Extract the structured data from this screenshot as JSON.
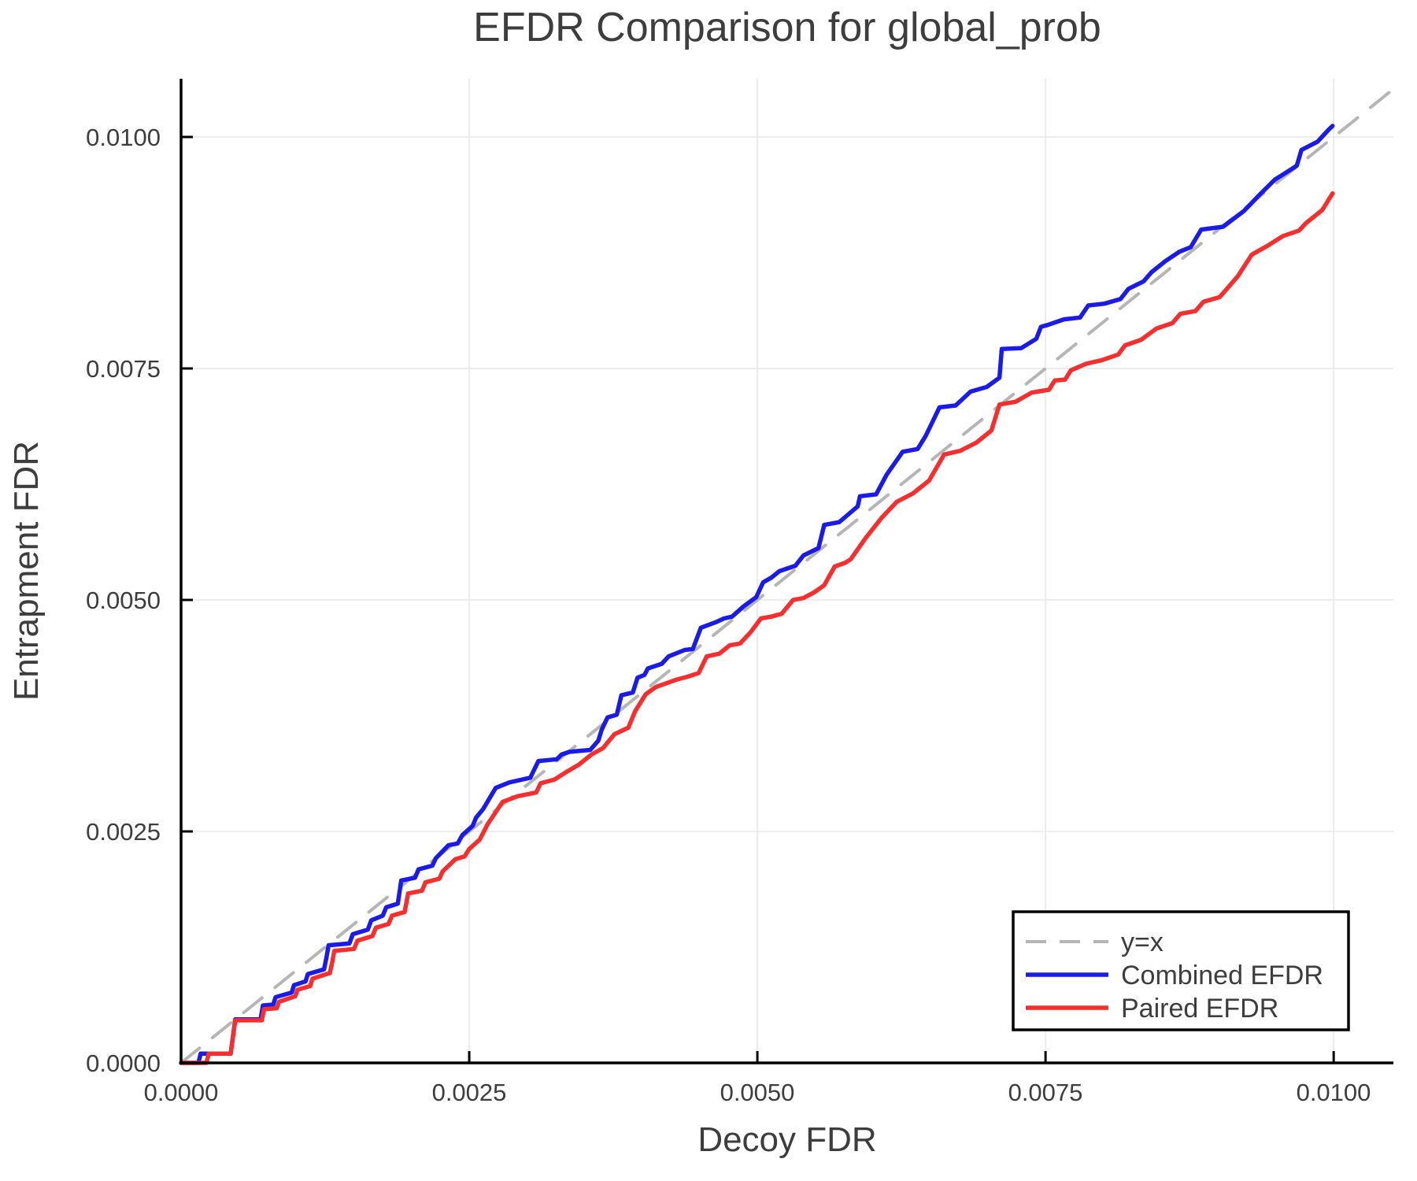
{
  "chart_data": {
    "type": "line",
    "title": "EFDR Comparison for global_prob",
    "xlabel": "Decoy FDR",
    "ylabel": "Entrapment FDR",
    "xlim": [
      0,
      0.010518
    ],
    "ylim": [
      0,
      0.010629
    ],
    "grid": true,
    "legend_position": "lower right",
    "x_ticks": [
      0,
      0.0025,
      0.005,
      0.0075,
      0.01
    ],
    "x_tick_labels": [
      "0.0000",
      "0.0025",
      "0.0050",
      "0.0075",
      "0.0100"
    ],
    "y_ticks": [
      0,
      0.0025,
      0.005,
      0.0075,
      0.01
    ],
    "y_tick_labels": [
      "0.0000",
      "0.0025",
      "0.0050",
      "0.0075",
      "0.0100"
    ],
    "colors": {
      "identity": "#b5b5b5",
      "combined": "#1b1be8",
      "paired": "#f72e2e",
      "grid": "#e8e8e8",
      "spine": "#000000",
      "text": "#3d3d3d"
    },
    "series": [
      {
        "name": "y=x",
        "color": "#b5b5b5",
        "dashed": true,
        "width": 4,
        "points": [
          [
            0,
            0
          ],
          [
            0.010518,
            0.010518
          ]
        ]
      },
      {
        "name": "Combined EFDR",
        "color": "#1b1be8",
        "dashed": false,
        "width": 5.5,
        "points": [
          [
            0,
            0
          ],
          [
            0.00015,
            0
          ],
          [
            0.00017,
            0.0001
          ],
          [
            0.00043,
            0.0001
          ],
          [
            0.00047,
            0.00047
          ],
          [
            0.00069,
            0.00047
          ],
          [
            0.00071,
            0.00062
          ],
          [
            0.0008,
            0.00063
          ],
          [
            0.00082,
            0.00071
          ],
          [
            0.00096,
            0.00076
          ],
          [
            0.00098,
            0.00084
          ],
          [
            0.00108,
            0.00088
          ],
          [
            0.0011,
            0.00096
          ],
          [
            0.00124,
            0.00101
          ],
          [
            0.00126,
            0.00113
          ],
          [
            0.00128,
            0.00127
          ],
          [
            0.00146,
            0.00129
          ],
          [
            0.00149,
            0.00139
          ],
          [
            0.00162,
            0.00144
          ],
          [
            0.00165,
            0.00154
          ],
          [
            0.00175,
            0.00159
          ],
          [
            0.00178,
            0.00168
          ],
          [
            0.00188,
            0.00172
          ],
          [
            0.00191,
            0.00197
          ],
          [
            0.00203,
            0.002
          ],
          [
            0.00206,
            0.00209
          ],
          [
            0.00218,
            0.00213
          ],
          [
            0.00221,
            0.00221
          ],
          [
            0.00232,
            0.00235
          ],
          [
            0.0024,
            0.00237
          ],
          [
            0.00244,
            0.00246
          ],
          [
            0.00253,
            0.00256
          ],
          [
            0.00256,
            0.00265
          ],
          [
            0.00262,
            0.00274
          ],
          [
            0.00273,
            0.00297
          ],
          [
            0.00285,
            0.00303
          ],
          [
            0.00303,
            0.00308
          ],
          [
            0.0031,
            0.00326
          ],
          [
            0.00326,
            0.00328
          ],
          [
            0.0033,
            0.00333
          ],
          [
            0.00337,
            0.00336
          ],
          [
            0.00355,
            0.00338
          ],
          [
            0.00362,
            0.00348
          ],
          [
            0.00365,
            0.0036
          ],
          [
            0.0037,
            0.00373
          ],
          [
            0.00378,
            0.00376
          ],
          [
            0.00382,
            0.00397
          ],
          [
            0.00392,
            0.004
          ],
          [
            0.00396,
            0.00416
          ],
          [
            0.00402,
            0.00419
          ],
          [
            0.00405,
            0.00426
          ],
          [
            0.00417,
            0.00431
          ],
          [
            0.00423,
            0.00439
          ],
          [
            0.00437,
            0.00446
          ],
          [
            0.00444,
            0.00447
          ],
          [
            0.00451,
            0.0047
          ],
          [
            0.00464,
            0.00476
          ],
          [
            0.00471,
            0.0048
          ],
          [
            0.00478,
            0.00482
          ],
          [
            0.00488,
            0.00493
          ],
          [
            0.00499,
            0.00503
          ],
          [
            0.00505,
            0.00519
          ],
          [
            0.00512,
            0.00524
          ],
          [
            0.00519,
            0.00531
          ],
          [
            0.00533,
            0.00537
          ],
          [
            0.0054,
            0.00548
          ],
          [
            0.00553,
            0.00556
          ],
          [
            0.00558,
            0.00581
          ],
          [
            0.00571,
            0.00584
          ],
          [
            0.00587,
            0.00601
          ],
          [
            0.00589,
            0.00612
          ],
          [
            0.00603,
            0.00614
          ],
          [
            0.00612,
            0.00635
          ],
          [
            0.00626,
            0.0066
          ],
          [
            0.00639,
            0.00663
          ],
          [
            0.00646,
            0.00677
          ],
          [
            0.00658,
            0.00708
          ],
          [
            0.00672,
            0.0071
          ],
          [
            0.00685,
            0.00725
          ],
          [
            0.00699,
            0.0073
          ],
          [
            0.0071,
            0.0074
          ],
          [
            0.00712,
            0.00771
          ],
          [
            0.00729,
            0.00772
          ],
          [
            0.00742,
            0.00782
          ],
          [
            0.00746,
            0.00795
          ],
          [
            0.00752,
            0.00797
          ],
          [
            0.00766,
            0.00803
          ],
          [
            0.0078,
            0.00805
          ],
          [
            0.00787,
            0.00818
          ],
          [
            0.00801,
            0.0082
          ],
          [
            0.00815,
            0.00825
          ],
          [
            0.00822,
            0.00836
          ],
          [
            0.00835,
            0.00844
          ],
          [
            0.00842,
            0.00854
          ],
          [
            0.00854,
            0.00866
          ],
          [
            0.00866,
            0.00876
          ],
          [
            0.00876,
            0.00881
          ],
          [
            0.00885,
            0.009
          ],
          [
            0.00904,
            0.00903
          ],
          [
            0.00922,
            0.0092
          ],
          [
            0.00936,
            0.00938
          ],
          [
            0.00949,
            0.00954
          ],
          [
            0.00958,
            0.00961
          ],
          [
            0.00968,
            0.00969
          ],
          [
            0.00972,
            0.00986
          ],
          [
            0.00986,
            0.00995
          ],
          [
            0.00995,
            0.01007
          ],
          [
            0.00999,
            0.01012
          ]
        ]
      },
      {
        "name": "Paired EFDR",
        "color": "#f72e2e",
        "dashed": false,
        "width": 5.5,
        "points": [
          [
            0,
            0
          ],
          [
            0.00022,
            0
          ],
          [
            0.00024,
            0.0001
          ],
          [
            0.00043,
            0.0001
          ],
          [
            0.00047,
            0.00046
          ],
          [
            0.0007,
            0.00046
          ],
          [
            0.00072,
            0.00058
          ],
          [
            0.00083,
            0.00059
          ],
          [
            0.00085,
            0.00066
          ],
          [
            0.00099,
            0.00072
          ],
          [
            0.00101,
            0.00079
          ],
          [
            0.00112,
            0.00083
          ],
          [
            0.00114,
            0.00091
          ],
          [
            0.00129,
            0.00097
          ],
          [
            0.00131,
            0.00108
          ],
          [
            0.00133,
            0.00121
          ],
          [
            0.0015,
            0.00123
          ],
          [
            0.00153,
            0.00132
          ],
          [
            0.00166,
            0.00137
          ],
          [
            0.00169,
            0.00146
          ],
          [
            0.0018,
            0.0015
          ],
          [
            0.00183,
            0.00159
          ],
          [
            0.00194,
            0.00163
          ],
          [
            0.00197,
            0.00183
          ],
          [
            0.00209,
            0.00186
          ],
          [
            0.00212,
            0.00195
          ],
          [
            0.00224,
            0.00199
          ],
          [
            0.00227,
            0.00207
          ],
          [
            0.00238,
            0.0022
          ],
          [
            0.00246,
            0.00223
          ],
          [
            0.0025,
            0.00231
          ],
          [
            0.00259,
            0.00241
          ],
          [
            0.00266,
            0.00258
          ],
          [
            0.00279,
            0.00282
          ],
          [
            0.00292,
            0.00288
          ],
          [
            0.00308,
            0.00292
          ],
          [
            0.00312,
            0.00302
          ],
          [
            0.00324,
            0.00306
          ],
          [
            0.00334,
            0.00314
          ],
          [
            0.00345,
            0.00322
          ],
          [
            0.00356,
            0.00333
          ],
          [
            0.00366,
            0.0034
          ],
          [
            0.00376,
            0.00355
          ],
          [
            0.00388,
            0.00362
          ],
          [
            0.00394,
            0.0038
          ],
          [
            0.00403,
            0.00398
          ],
          [
            0.00412,
            0.00406
          ],
          [
            0.00421,
            0.0041
          ],
          [
            0.0043,
            0.00414
          ],
          [
            0.00439,
            0.00417
          ],
          [
            0.00449,
            0.00421
          ],
          [
            0.00456,
            0.00439
          ],
          [
            0.00467,
            0.00442
          ],
          [
            0.00476,
            0.00451
          ],
          [
            0.00485,
            0.00453
          ],
          [
            0.00494,
            0.00465
          ],
          [
            0.00503,
            0.0048
          ],
          [
            0.00512,
            0.00482
          ],
          [
            0.00521,
            0.00485
          ],
          [
            0.00531,
            0.005
          ],
          [
            0.0054,
            0.00502
          ],
          [
            0.00549,
            0.00508
          ],
          [
            0.00558,
            0.00516
          ],
          [
            0.00567,
            0.00536
          ],
          [
            0.00576,
            0.0054
          ],
          [
            0.00581,
            0.00544
          ],
          [
            0.00594,
            0.00567
          ],
          [
            0.00608,
            0.00589
          ],
          [
            0.00621,
            0.00606
          ],
          [
            0.00635,
            0.00615
          ],
          [
            0.00649,
            0.00629
          ],
          [
            0.00662,
            0.00657
          ],
          [
            0.00676,
            0.00661
          ],
          [
            0.0069,
            0.0067
          ],
          [
            0.00703,
            0.00683
          ],
          [
            0.0071,
            0.00711
          ],
          [
            0.00724,
            0.00714
          ],
          [
            0.00738,
            0.00724
          ],
          [
            0.00753,
            0.00727
          ],
          [
            0.00758,
            0.00737
          ],
          [
            0.00767,
            0.00738
          ],
          [
            0.00772,
            0.00748
          ],
          [
            0.00785,
            0.00755
          ],
          [
            0.00799,
            0.00759
          ],
          [
            0.00813,
            0.00765
          ],
          [
            0.00819,
            0.00775
          ],
          [
            0.00833,
            0.00781
          ],
          [
            0.00846,
            0.00793
          ],
          [
            0.0086,
            0.00799
          ],
          [
            0.00867,
            0.00809
          ],
          [
            0.0088,
            0.00812
          ],
          [
            0.00887,
            0.00822
          ],
          [
            0.00901,
            0.00827
          ],
          [
            0.00908,
            0.00837
          ],
          [
            0.00917,
            0.0085
          ],
          [
            0.00929,
            0.00873
          ],
          [
            0.00942,
            0.00882
          ],
          [
            0.00956,
            0.00893
          ],
          [
            0.0097,
            0.00899
          ],
          [
            0.00976,
            0.00907
          ],
          [
            0.0099,
            0.00921
          ],
          [
            0.00999,
            0.00939
          ]
        ]
      }
    ],
    "legend": {
      "entries": [
        {
          "label": "y=x"
        },
        {
          "label": "Combined EFDR"
        },
        {
          "label": "Paired EFDR"
        }
      ]
    }
  }
}
